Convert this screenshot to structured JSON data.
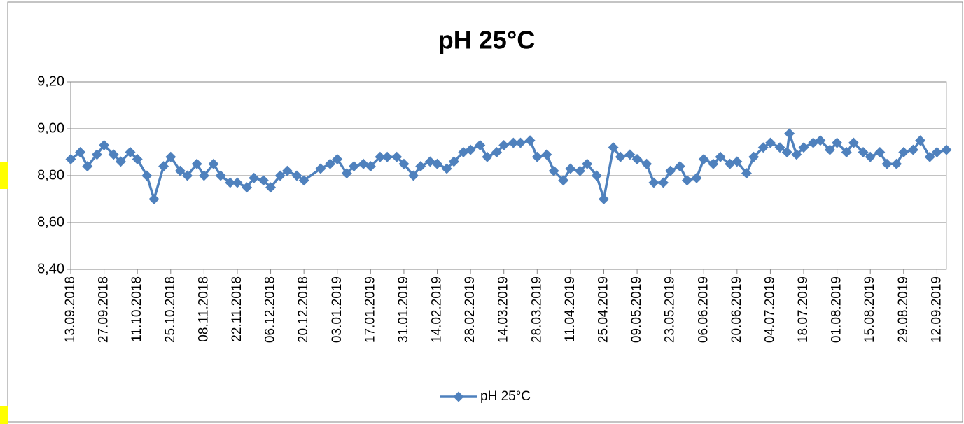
{
  "chart_data": {
    "type": "line",
    "title": "pH 25°C",
    "x": [
      "13.09.2018",
      "17.09.2018",
      "20.09.2018",
      "24.09.2018",
      "27.09.2018",
      "01.10.2018",
      "04.10.2018",
      "08.10.2018",
      "11.10.2018",
      "15.10.2018",
      "18.10.2018",
      "22.10.2018",
      "25.10.2018",
      "29.10.2018",
      "01.11.2018",
      "05.11.2018",
      "08.11.2018",
      "12.11.2018",
      "15.11.2018",
      "19.11.2018",
      "22.11.2018",
      "26.11.2018",
      "29.11.2018",
      "03.12.2018",
      "06.12.2018",
      "10.12.2018",
      "13.12.2018",
      "17.12.2018",
      "20.12.2018",
      "27.12.2018",
      "31.12.2018",
      "03.01.2019",
      "07.01.2019",
      "10.01.2019",
      "14.01.2019",
      "17.01.2019",
      "21.01.2019",
      "24.01.2019",
      "28.01.2019",
      "31.01.2019",
      "04.02.2019",
      "07.02.2019",
      "11.02.2019",
      "14.02.2019",
      "18.02.2019",
      "21.02.2019",
      "25.02.2019",
      "28.02.2019",
      "04.03.2019",
      "07.03.2019",
      "11.03.2019",
      "14.03.2019",
      "18.03.2019",
      "21.03.2019",
      "25.03.2019",
      "28.03.2019",
      "01.04.2019",
      "04.04.2019",
      "08.04.2019",
      "11.04.2019",
      "15.04.2019",
      "18.04.2019",
      "22.04.2019",
      "25.04.2019",
      "29.04.2019",
      "02.05.2019",
      "06.05.2019",
      "09.05.2019",
      "13.05.2019",
      "16.05.2019",
      "20.05.2019",
      "23.05.2019",
      "27.05.2019",
      "30.05.2019",
      "03.06.2019",
      "06.06.2019",
      "10.06.2019",
      "13.06.2019",
      "17.06.2019",
      "20.06.2019",
      "24.06.2019",
      "27.06.2019",
      "01.07.2019",
      "04.07.2019",
      "08.07.2019",
      "11.07.2019",
      "12.07.2019",
      "15.07.2019",
      "18.07.2019",
      "22.07.2019",
      "25.07.2019",
      "29.07.2019",
      "01.08.2019",
      "05.08.2019",
      "08.08.2019",
      "12.08.2019",
      "15.08.2019",
      "19.08.2019",
      "22.08.2019",
      "26.08.2019",
      "29.08.2019",
      "02.09.2019",
      "05.09.2019",
      "09.09.2019",
      "12.09.2019",
      "16.09.2019"
    ],
    "series": [
      {
        "name": "pH 25°C",
        "color": "#4f81bd",
        "values": [
          8.87,
          8.9,
          8.84,
          8.89,
          8.93,
          8.89,
          8.86,
          8.9,
          8.87,
          8.8,
          8.7,
          8.84,
          8.88,
          8.82,
          8.8,
          8.85,
          8.8,
          8.85,
          8.8,
          8.77,
          8.77,
          8.75,
          8.79,
          8.78,
          8.75,
          8.8,
          8.82,
          8.8,
          8.78,
          8.83,
          8.85,
          8.87,
          8.81,
          8.84,
          8.85,
          8.84,
          8.88,
          8.88,
          8.88,
          8.85,
          8.8,
          8.84,
          8.86,
          8.85,
          8.83,
          8.86,
          8.9,
          8.91,
          8.93,
          8.88,
          8.9,
          8.93,
          8.94,
          8.94,
          8.95,
          8.88,
          8.89,
          8.82,
          8.78,
          8.83,
          8.82,
          8.85,
          8.8,
          8.7,
          8.92,
          8.88,
          8.89,
          8.87,
          8.85,
          8.77,
          8.77,
          8.82,
          8.84,
          8.78,
          8.79,
          8.87,
          8.85,
          8.88,
          8.85,
          8.86,
          8.81,
          8.88,
          8.92,
          8.94,
          8.92,
          8.9,
          8.98,
          8.89,
          8.92,
          8.94,
          8.95,
          8.91,
          8.94,
          8.9,
          8.94,
          8.9,
          8.88,
          8.9,
          8.85,
          8.85,
          8.9,
          8.91,
          8.95,
          8.88,
          8.9,
          8.91
        ]
      }
    ],
    "xlim": [
      "13.09.2018",
      "16.09.2019"
    ],
    "xticks": [
      "13.09.2018",
      "27.09.2018",
      "11.10.2018",
      "25.10.2018",
      "08.11.2018",
      "22.11.2018",
      "06.12.2018",
      "20.12.2018",
      "03.01.2019",
      "17.01.2019",
      "31.01.2019",
      "14.02.2019",
      "28.02.2019",
      "14.03.2019",
      "28.03.2019",
      "11.04.2019",
      "25.04.2019",
      "09.05.2019",
      "23.05.2019",
      "06.06.2019",
      "20.06.2019",
      "04.07.2019",
      "18.07.2019",
      "01.08.2019",
      "15.08.2019",
      "29.08.2019",
      "12.09.2019"
    ],
    "ylim": [
      8.4,
      9.2
    ],
    "yticks": [
      {
        "value": 8.4,
        "label": "8,40"
      },
      {
        "value": 8.6,
        "label": "8,60"
      },
      {
        "value": 8.8,
        "label": "8,80"
      },
      {
        "value": 9.0,
        "label": "9,00"
      },
      {
        "value": 9.2,
        "label": "9,20"
      }
    ],
    "grid": true,
    "legend": "bottom"
  }
}
